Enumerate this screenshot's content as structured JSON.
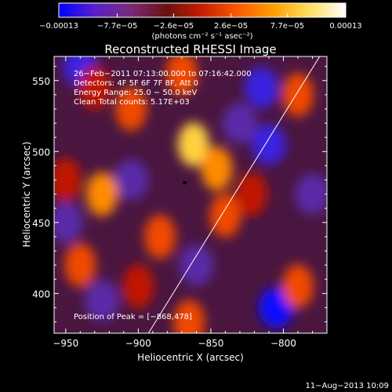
{
  "chart_data": {
    "type": "heatmap",
    "title": "Reconstructed RHESSI Image",
    "xlabel": "Heliocentric X (arcsec)",
    "ylabel": "Heliocentric Y (arcsec)",
    "xlim": [
      -958,
      -770
    ],
    "ylim": [
      372,
      567
    ],
    "x_ticks": [
      -950,
      -900,
      -850,
      -800
    ],
    "x_tick_labels": [
      "−950",
      "−900",
      "−850",
      "−800"
    ],
    "y_ticks": [
      400,
      450,
      500,
      550
    ],
    "y_tick_labels": [
      "400",
      "450",
      "500",
      "550"
    ],
    "colorbar": {
      "label": "(photons cm⁻² s⁻¹ asec⁻²)",
      "min": -0.00013,
      "max": 0.00013,
      "tick_values": [
        -0.00013,
        -7.7e-05,
        -2.6e-05,
        2.6e-05,
        7.7e-05,
        0.00013
      ],
      "tick_labels": [
        "−0.00013",
        "−7.7e−05",
        "−2.6e−05",
        "2.6e−05",
        "7.7e−05",
        "0.00013"
      ],
      "colors": [
        "#0000ff",
        "#5a1fcc",
        "#7a2a7a",
        "#6a1010",
        "#c81e00",
        "#ff5a00",
        "#ffa000",
        "#ffe060",
        "#ffffff"
      ]
    },
    "annotations": [
      "26−Feb−2011 07:13:00.000 to 07:16:42.000",
      "Detectors: 4F 5F 6F 7F 8F, Att 0",
      "Energy Range: 25.0 − 50.0 keV",
      "Clean     Total counts: 5.17E+03"
    ],
    "peak": {
      "label": "Position of Peak = [−868,478]",
      "x": -868,
      "y": 478
    },
    "hot_spots": [
      {
        "x": -862,
        "y": 505,
        "v": 0.00012
      },
      {
        "x": -846,
        "y": 488,
        "v": 0.0001
      },
      {
        "x": -925,
        "y": 470,
        "v": 0.00011
      },
      {
        "x": -885,
        "y": 440,
        "v": 9e-05
      },
      {
        "x": -905,
        "y": 530,
        "v": 8e-05
      },
      {
        "x": -930,
        "y": 545,
        "v": 7e-05
      },
      {
        "x": -870,
        "y": 555,
        "v": 8e-05
      },
      {
        "x": -840,
        "y": 455,
        "v": 9e-05
      },
      {
        "x": -940,
        "y": 420,
        "v": 8e-05
      },
      {
        "x": -900,
        "y": 405,
        "v": 7e-05
      },
      {
        "x": -790,
        "y": 405,
        "v": 9e-05
      },
      {
        "x": -790,
        "y": 540,
        "v": 8e-05
      },
      {
        "x": -822,
        "y": 470,
        "v": 7e-05
      },
      {
        "x": -865,
        "y": 380,
        "v": 8e-05
      },
      {
        "x": -950,
        "y": 480,
        "v": 6e-05
      }
    ],
    "cold_spots": [
      {
        "x": -805,
        "y": 390,
        "v": -0.00013
      },
      {
        "x": -815,
        "y": 545,
        "v": -0.00011
      },
      {
        "x": -810,
        "y": 505,
        "v": -8e-05
      },
      {
        "x": -940,
        "y": 560,
        "v": -8e-05
      },
      {
        "x": -905,
        "y": 480,
        "v": -7e-05
      },
      {
        "x": -950,
        "y": 450,
        "v": -6e-05
      },
      {
        "x": -860,
        "y": 420,
        "v": -6e-05
      },
      {
        "x": -830,
        "y": 520,
        "v": -5e-05
      },
      {
        "x": -780,
        "y": 470,
        "v": -6e-05
      },
      {
        "x": -925,
        "y": 395,
        "v": -6e-05
      }
    ],
    "limb_line": [
      [
        -893,
        372
      ],
      [
        -775,
        567
      ]
    ]
  },
  "footer": {
    "date": "11−Aug−2013 10:09"
  }
}
